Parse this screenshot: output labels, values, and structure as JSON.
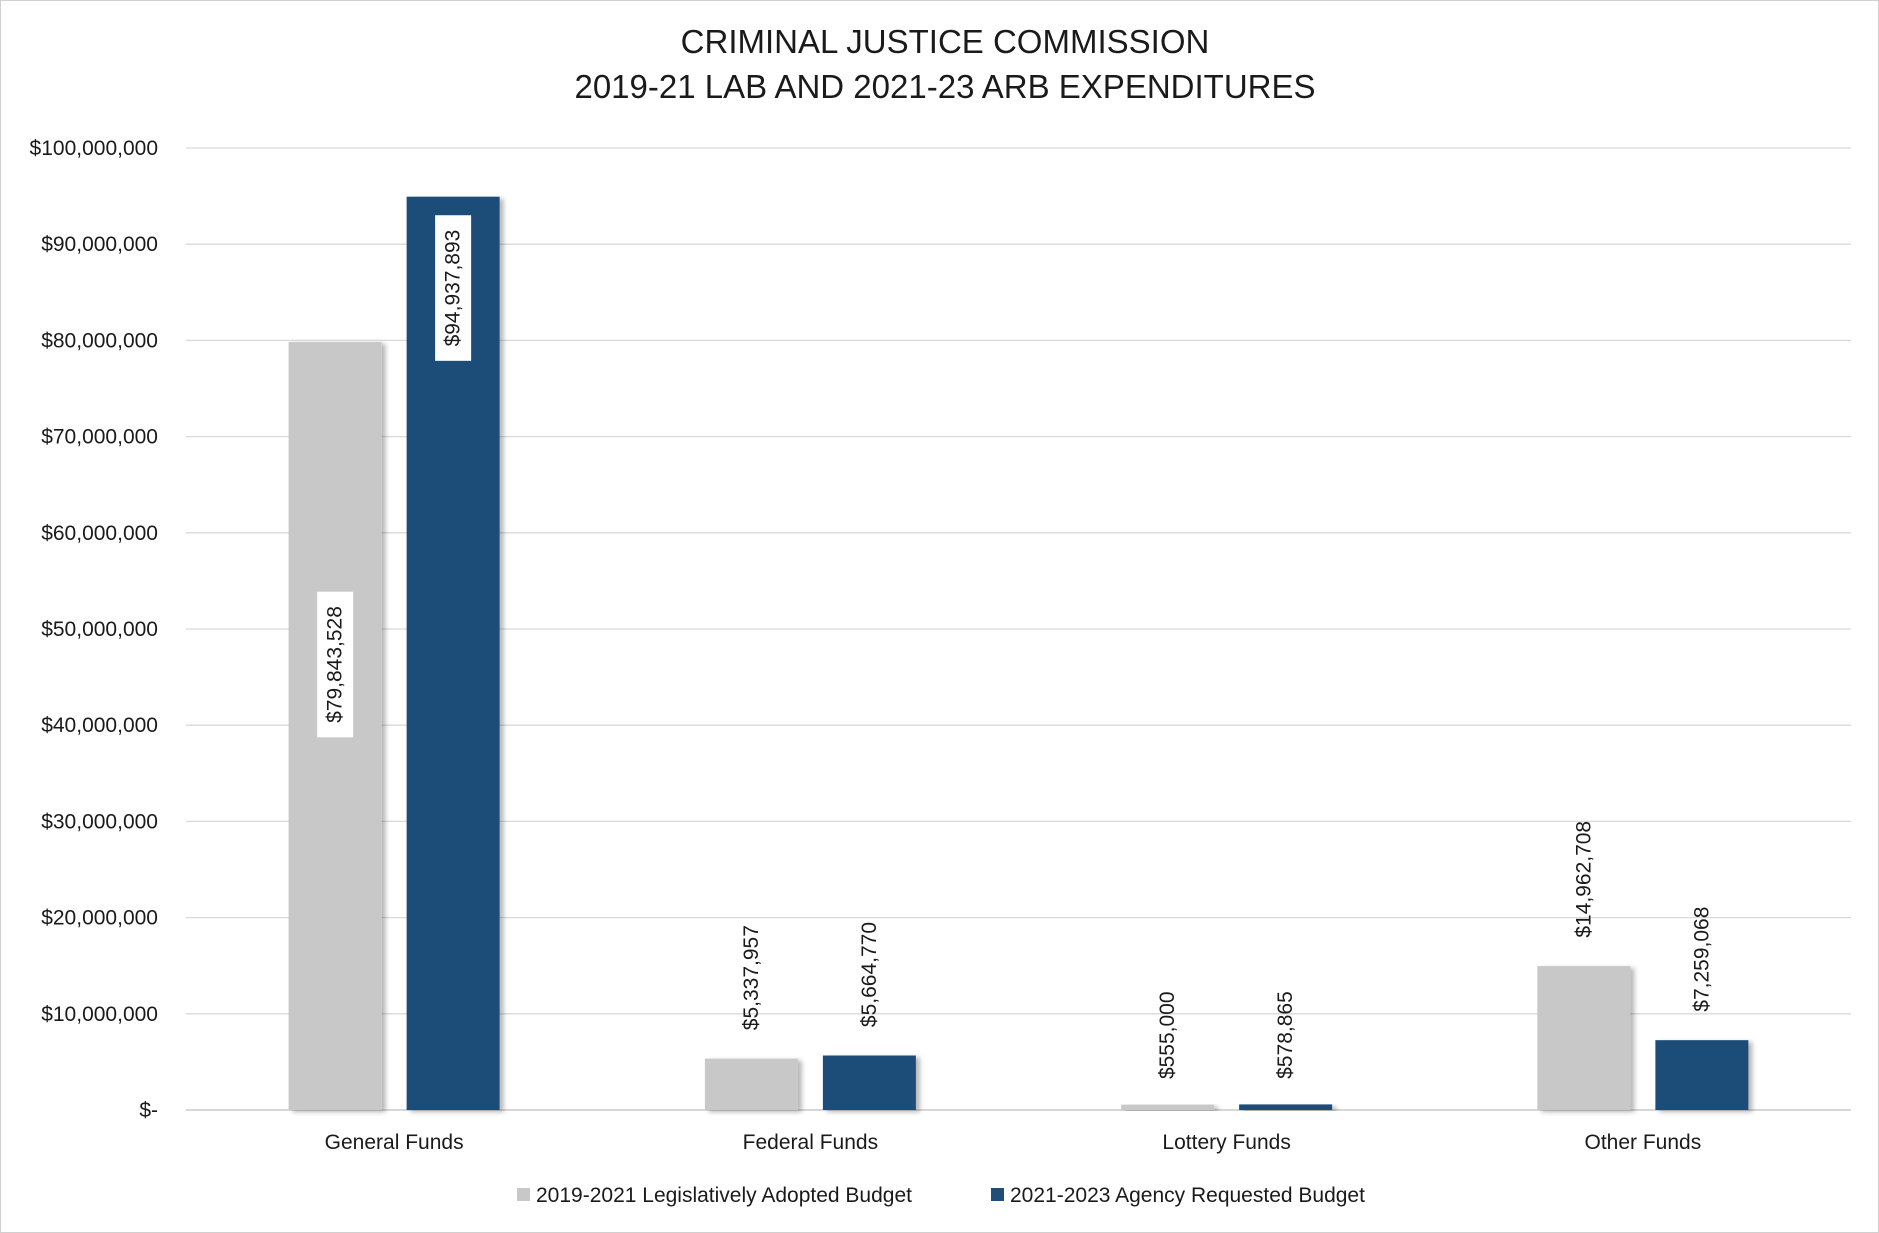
{
  "chart_data": {
    "type": "bar",
    "title_lines": [
      "CRIMINAL JUSTICE COMMISSION",
      "2019-21 LAB AND 2021-23 ARB EXPENDITURES"
    ],
    "categories": [
      "General Funds",
      "Federal Funds",
      "Lottery Funds",
      "Other Funds"
    ],
    "series": [
      {
        "name": "2019-2021 Legislatively Adopted Budget",
        "color": "#c8c8c8",
        "values": [
          79843528,
          5337957,
          555000,
          14962708
        ],
        "labels": [
          "$79,843,528",
          "$5,337,957",
          "$555,000",
          "$14,962,708"
        ]
      },
      {
        "name": "2021-2023 Agency Requested Budget",
        "color": "#1f4e79",
        "values": [
          94937893,
          5664770,
          578865,
          7259068
        ],
        "labels": [
          "$94,937,893",
          "$5,664,770",
          "$578,865",
          "$7,259,068"
        ]
      }
    ],
    "ylim": [
      0,
      100000000
    ],
    "yticks": [
      0,
      10000000,
      20000000,
      30000000,
      40000000,
      50000000,
      60000000,
      70000000,
      80000000,
      90000000,
      100000000
    ],
    "ytick_labels": [
      "$-",
      "$10,000,000",
      "$20,000,000",
      "$30,000,000",
      "$40,000,000",
      "$50,000,000",
      "$60,000,000",
      "$70,000,000",
      "$80,000,000",
      "$90,000,000",
      "$100,000,000"
    ],
    "grid": true,
    "gridline_color": "#d9d9d9",
    "legend_position": "bottom"
  }
}
